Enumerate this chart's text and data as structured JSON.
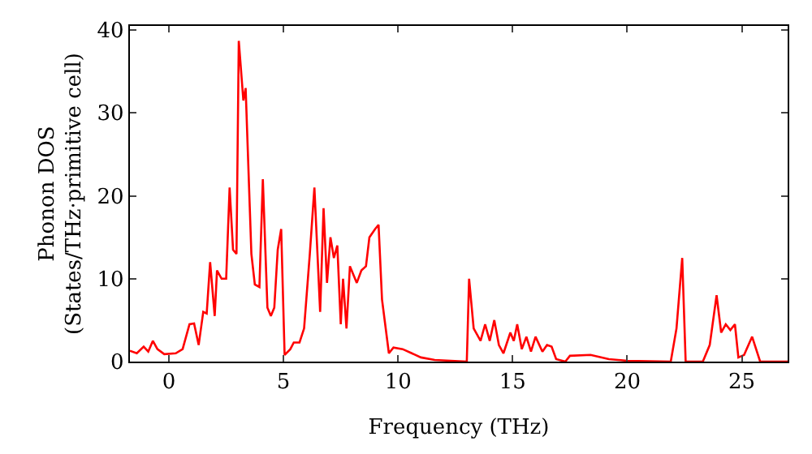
{
  "chart_data": {
    "type": "line",
    "xlabel": "Frequency (THz)",
    "ylabel": "Phonon DOS\n(States/THz·primitive cell)",
    "xlim": [
      -1.7,
      27
    ],
    "ylim": [
      0,
      40.5
    ],
    "xticks": [
      0,
      5,
      10,
      15,
      20,
      25
    ],
    "yticks": [
      0,
      10,
      20,
      30,
      40
    ],
    "legend": false,
    "marker": "none",
    "line_style": "solid",
    "series": [
      {
        "color": "#ff0000",
        "x": [
          -1.7,
          -1.4,
          -1.1,
          -0.9,
          -0.7,
          -0.5,
          -0.2,
          0.3,
          0.6,
          0.9,
          1.1,
          1.3,
          1.5,
          1.65,
          1.8,
          2.0,
          2.1,
          2.3,
          2.5,
          2.65,
          2.8,
          2.95,
          3.05,
          3.25,
          3.35,
          3.6,
          3.75,
          3.95,
          4.1,
          4.3,
          4.45,
          4.6,
          4.75,
          4.9,
          5.05,
          5.3,
          5.45,
          5.7,
          5.9,
          6.15,
          6.35,
          6.6,
          6.75,
          6.9,
          7.05,
          7.2,
          7.35,
          7.5,
          7.6,
          7.75,
          7.9,
          8.2,
          8.4,
          8.6,
          8.75,
          9.0,
          9.15,
          9.3,
          9.6,
          9.8,
          10.2,
          10.6,
          11,
          11.6,
          13.0,
          13.1,
          13.3,
          13.6,
          13.8,
          14.0,
          14.2,
          14.4,
          14.6,
          14.9,
          15.05,
          15.2,
          15.4,
          15.6,
          15.8,
          16.0,
          16.3,
          16.5,
          16.7,
          16.9,
          17.3,
          17.5,
          18.4,
          19.2,
          20.0,
          21.9,
          22.15,
          22.4,
          22.55,
          23.3,
          23.6,
          23.9,
          24.1,
          24.3,
          24.5,
          24.7,
          24.85,
          25.1,
          25.45,
          25.8,
          27
        ],
        "values": [
          1.3,
          1.0,
          1.8,
          1.2,
          2.5,
          1.5,
          0.9,
          1.0,
          1.5,
          4.5,
          4.6,
          2,
          6,
          5.8,
          12,
          5.5,
          11,
          10,
          10,
          21,
          13.5,
          13,
          38.7,
          31.5,
          33,
          13,
          9.3,
          9,
          22,
          6.5,
          5.5,
          6.5,
          13.5,
          16,
          0.8,
          1.5,
          2.3,
          2.3,
          4,
          13,
          21,
          6,
          18.5,
          9.5,
          15,
          12.5,
          14,
          4.5,
          10,
          4,
          11.5,
          9.5,
          11,
          11.5,
          15,
          16,
          16.5,
          7.5,
          1,
          1.7,
          1.5,
          1.0,
          0.5,
          0.2,
          0,
          10,
          4,
          2.5,
          4.5,
          2.5,
          5,
          2,
          1,
          3.5,
          2.5,
          4.5,
          1.5,
          3,
          1.2,
          3,
          1.2,
          2,
          1.8,
          0.3,
          0,
          0.7,
          0.8,
          0.3,
          0.1,
          0,
          4,
          12.5,
          0,
          0,
          2,
          8,
          3.5,
          4.5,
          3.8,
          4.5,
          0.5,
          0.8,
          3,
          0,
          0
        ]
      }
    ]
  }
}
